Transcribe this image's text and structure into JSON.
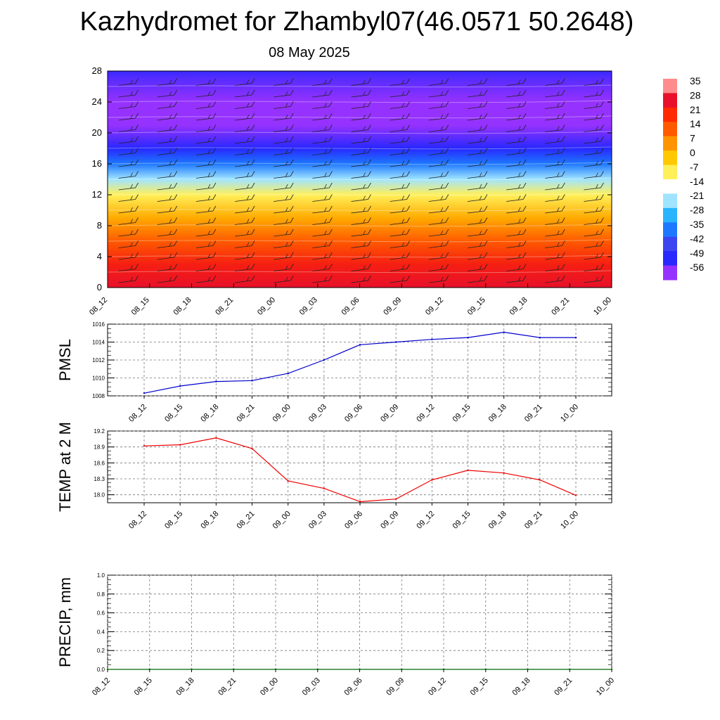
{
  "title": "Kazhydromet for Zhambyl07(46.0571 50.2648)",
  "subtitle": "08 May 2025",
  "chart_data": [
    {
      "type": "heatmap",
      "xlabels": [
        "08_12",
        "08_15",
        "08_18",
        "08_21",
        "09_00",
        "09_03",
        "09_06",
        "09_09",
        "09_12",
        "09_15",
        "09_18",
        "09_21",
        "10_00"
      ],
      "ylim": [
        0,
        28
      ],
      "yticks": [
        0,
        4,
        8,
        12,
        16,
        20,
        24,
        28
      ],
      "colorbar": {
        "labels": [
          "35",
          "28",
          "21",
          "14",
          "7",
          "0",
          "-7",
          "-14",
          "-21",
          "-28",
          "-35",
          "-42",
          "-49",
          "-56"
        ],
        "colors": [
          "#ff8c8c",
          "#e8102a",
          "#ff2a00",
          "#ff5a00",
          "#ff9400",
          "#ffc800",
          "#fff05a",
          "#ffffff",
          "#a0e4ff",
          "#28b4ff",
          "#1e78ff",
          "#3c46f0",
          "#2828ff",
          "#9632ff"
        ]
      },
      "profile": [
        {
          "level": 0,
          "value": 28
        },
        {
          "level": 3,
          "value": 24
        },
        {
          "level": 6,
          "value": 14
        },
        {
          "level": 9,
          "value": 4
        },
        {
          "level": 12,
          "value": -7
        },
        {
          "level": 14,
          "value": -21
        },
        {
          "level": 16,
          "value": -35
        },
        {
          "level": 18,
          "value": -49
        },
        {
          "level": 21,
          "value": -58
        },
        {
          "level": 24,
          "value": -58
        },
        {
          "level": 27,
          "value": -52
        },
        {
          "level": 28,
          "value": -50
        }
      ]
    },
    {
      "type": "line",
      "ylabel": "PMSL",
      "x": [
        "08_12",
        "08_15",
        "08_18",
        "08_21",
        "09_00",
        "09_03",
        "09_06",
        "09_09",
        "09_12",
        "09_15",
        "09_18",
        "09_21",
        "10_00"
      ],
      "ylim": [
        1008,
        1016
      ],
      "yticks": [
        1008,
        1010,
        1012,
        1014,
        1016
      ],
      "tick_decimals": 0,
      "color": "#0000cc",
      "series": [
        {
          "values": [
            1008.3,
            1009.1,
            1009.6,
            1009.7,
            1010.5,
            1012.0,
            1013.7,
            1014.0,
            1014.3,
            1014.5,
            1015.1,
            1014.5,
            1014.5
          ]
        }
      ]
    },
    {
      "type": "line",
      "ylabel": "TEMP at 2 M",
      "x": [
        "08_12",
        "08_15",
        "08_18",
        "08_21",
        "09_00",
        "09_03",
        "09_06",
        "09_09",
        "09_12",
        "09_15",
        "09_18",
        "09_21",
        "10_00"
      ],
      "ylim": [
        17.85,
        19.2
      ],
      "yticks": [
        18.0,
        18.3,
        18.6,
        18.9,
        19.2
      ],
      "tick_decimals": 1,
      "color": "#ee0000",
      "series": [
        {
          "values": [
            18.92,
            18.94,
            19.07,
            18.87,
            18.26,
            18.12,
            17.87,
            17.92,
            18.28,
            18.46,
            18.41,
            18.28,
            17.99
          ]
        }
      ]
    },
    {
      "type": "line",
      "ylabel": "PRECIP, mm",
      "x": [
        "08_12",
        "08_15",
        "08_18",
        "08_21",
        "09_00",
        "09_03",
        "09_06",
        "09_09",
        "09_12",
        "09_15",
        "09_18",
        "09_21",
        "10_00"
      ],
      "ylim": [
        0,
        1
      ],
      "yticks": [
        0.0,
        0.2,
        0.4,
        0.6,
        0.8,
        1.0
      ],
      "tick_decimals": 1,
      "color": "#006400",
      "series": [
        {
          "values": [
            0,
            0,
            0,
            0,
            0,
            0,
            0,
            0,
            0,
            0,
            0,
            0,
            0
          ]
        }
      ]
    }
  ]
}
